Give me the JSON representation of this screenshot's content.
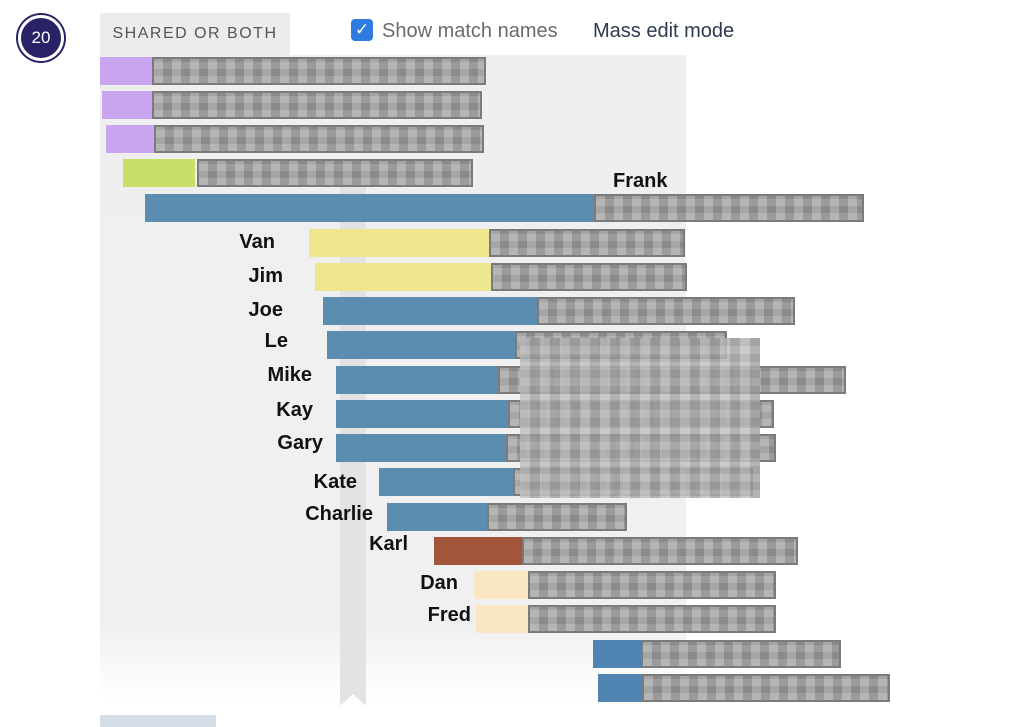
{
  "header": {
    "badge_count": "20",
    "shared_tab_label": "SHARED OR BOTH",
    "show_match_names_label": "Show match names",
    "show_match_names_checked": true,
    "mass_edit_label": "Mass edit mode"
  },
  "colors": {
    "badge": "#2a2266",
    "checkbox": "#2f7be0",
    "purple": "#c9a6ef",
    "lime": "#c8e06a",
    "steel_blue": "#5b8db0",
    "yellow": "#efe690",
    "rust": "#a3553b",
    "peach": "#fbe6c4",
    "dark_blue": "#4f84b3"
  },
  "rows": [
    {
      "name": "",
      "color": "purple"
    },
    {
      "name": "",
      "color": "purple"
    },
    {
      "name": "",
      "color": "purple"
    },
    {
      "name": "",
      "color": "lime"
    },
    {
      "name": "Frank",
      "color": "steel_blue"
    },
    {
      "name": "Van",
      "color": "yellow"
    },
    {
      "name": "Jim",
      "color": "yellow"
    },
    {
      "name": "Joe",
      "color": "steel_blue"
    },
    {
      "name": "Le",
      "color": "steel_blue"
    },
    {
      "name": "Mike",
      "color": "steel_blue"
    },
    {
      "name": "Kay",
      "color": "steel_blue"
    },
    {
      "name": "Gary",
      "color": "steel_blue"
    },
    {
      "name": "Kate",
      "color": "steel_blue"
    },
    {
      "name": "Charlie",
      "color": "steel_blue"
    },
    {
      "name": "Karl",
      "color": "rust"
    },
    {
      "name": "Dan",
      "color": "peach"
    },
    {
      "name": "Fred",
      "color": "peach"
    },
    {
      "name": "",
      "color": "dark_blue"
    },
    {
      "name": "",
      "color": "dark_blue"
    }
  ]
}
